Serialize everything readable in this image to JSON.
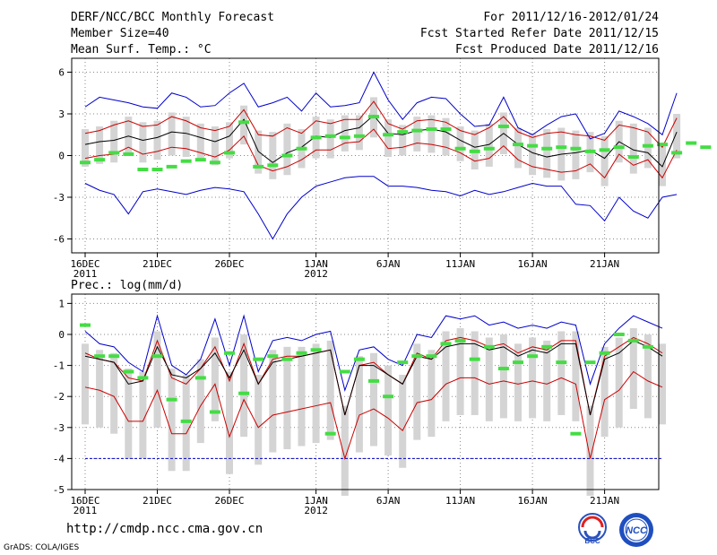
{
  "header": {
    "title": "DERF/NCC/BCC Monthly Forecast",
    "member_size": "Member Size=40",
    "variable": "Mean Surf. Temp.: °C",
    "period": "For 2011/12/16-2012/01/24",
    "started": "Fcst Started Refer Date 2011/12/15",
    "produced": "Fcst Produced Date 2011/12/16"
  },
  "footer": {
    "url": "http://cmdp.ncc.cma.gov.cn",
    "credit": "GrADS: COLA/IGES",
    "logo_bcc": "BCC",
    "logo_ncc": "NCC"
  },
  "colors": {
    "envelope": "#0000cc",
    "spread": "#cc0000",
    "mean": "#000000",
    "box": "#d4d4d4",
    "obs": "#44dd44",
    "grid": "#888888"
  },
  "chart_data": [
    {
      "type": "line",
      "title": "Mean Surf. Temp.: °C",
      "ylim": [
        -7,
        7
      ],
      "yticks": [
        6,
        3,
        0,
        -3,
        -6
      ],
      "grid": true,
      "x_tick_labels": [
        "16DEC",
        "21DEC",
        "26DEC",
        "1JAN",
        "6JAN",
        "11JAN",
        "16JAN",
        "21JAN"
      ],
      "x_tick_days": [
        0,
        5,
        10,
        16,
        21,
        26,
        31,
        36
      ],
      "x_year_labels": [
        {
          "day": 0,
          "label": "2011"
        },
        {
          "day": 16,
          "label": "2012"
        }
      ],
      "days": 40,
      "series": [
        {
          "name": "max",
          "color": "#0000cc",
          "values": [
            3.5,
            4.2,
            4,
            3.8,
            3.5,
            3.4,
            4.5,
            4.2,
            3.5,
            3.6,
            4.5,
            5.2,
            3.5,
            3.8,
            4.2,
            3.2,
            4.5,
            3.5,
            3.6,
            3.8,
            6,
            4,
            2.6,
            3.8,
            4.2,
            4.1,
            3,
            2.1,
            2.2,
            4.2,
            2,
            1.5,
            2.2,
            2.8,
            3,
            1.2,
            1.6,
            3.2,
            2.8,
            2.3,
            1.5,
            4.5
          ]
        },
        {
          "name": "upper",
          "color": "#cc0000",
          "values": [
            1.6,
            1.8,
            2.2,
            2.5,
            2.1,
            2.2,
            2.8,
            2.5,
            2,
            1.8,
            2.1,
            3.3,
            1.5,
            1.4,
            2,
            1.6,
            2.5,
            2.3,
            2.6,
            2.6,
            3.9,
            2.3,
            1.9,
            2.5,
            2.6,
            2.4,
            1.8,
            1.5,
            2,
            2.8,
            1.7,
            1.3,
            1.6,
            1.7,
            1.5,
            1.4,
            1.1,
            2.2,
            2,
            1.7,
            0.6,
            2.7
          ]
        },
        {
          "name": "mean",
          "color": "#000000",
          "values": [
            0.8,
            1,
            1.1,
            1.4,
            1.1,
            1.3,
            1.7,
            1.6,
            1.3,
            1,
            1.4,
            2.6,
            0.3,
            -0.5,
            0.2,
            0.6,
            1.4,
            1.3,
            1.8,
            2,
            2.9,
            1.6,
            1.5,
            1.8,
            1.9,
            1.7,
            1.1,
            0.6,
            0.8,
            1.6,
            0.8,
            0.2,
            -0.1,
            0.1,
            0.2,
            0.4,
            -0.2,
            1,
            0.4,
            0.2,
            -0.8,
            1.7
          ]
        },
        {
          "name": "lower",
          "color": "#cc0000",
          "values": [
            -0.2,
            0,
            0.1,
            0.6,
            0.1,
            0.3,
            0.6,
            0.5,
            0.2,
            -0.1,
            0.4,
            1.4,
            -0.7,
            -1.1,
            -0.8,
            -0.3,
            0.4,
            0.4,
            0.9,
            1,
            1.9,
            0.5,
            0.6,
            0.9,
            0.8,
            0.6,
            0.2,
            -0.4,
            -0.2,
            0.7,
            -0.3,
            -0.8,
            -1,
            -1.2,
            -1.1,
            -0.6,
            -1.6,
            0.1,
            -0.7,
            -0.3,
            -1.6,
            0.4
          ]
        },
        {
          "name": "min",
          "color": "#0000cc",
          "values": [
            -2,
            -2.5,
            -2.8,
            -4.2,
            -2.6,
            -2.4,
            -2.6,
            -2.8,
            -2.5,
            -2.3,
            -2.4,
            -2.6,
            -4.2,
            -6,
            -4.2,
            -3,
            -2.2,
            -1.9,
            -1.6,
            -1.5,
            -1.5,
            -2.2,
            -2.2,
            -2.3,
            -2.5,
            -2.6,
            -2.9,
            -2.5,
            -2.8,
            -2.6,
            -2.3,
            -2,
            -2.2,
            -2.2,
            -3.5,
            -3.6,
            -4.7,
            -3,
            -4,
            -4.5,
            -3,
            -2.8
          ]
        },
        {
          "name": "obs",
          "color": "#44dd44",
          "values": [
            -0.5,
            -0.3,
            0.2,
            0.1,
            -1,
            -1,
            -0.8,
            -0.4,
            -0.3,
            -0.5,
            0.2,
            2.4,
            -0.8,
            -0.7,
            0,
            0.5,
            1.3,
            1.4,
            1.3,
            1.4,
            2.8,
            1.5,
            1.7,
            1.8,
            1.9,
            1.9,
            0.5,
            0.3,
            0.5,
            2.1,
            0.8,
            0.7,
            0.5,
            0.6,
            0.5,
            0.3,
            0.4,
            0.6,
            -0.1,
            0.7,
            0.8,
            0.2,
            0.9,
            0.6
          ]
        }
      ]
    },
    {
      "type": "line",
      "title": "Prec.: log(mm/d)",
      "ylim": [
        -5,
        1.3
      ],
      "yticks": [
        1,
        0,
        -1,
        -2,
        -3,
        -4,
        -5
      ],
      "grid": true,
      "x_tick_labels": [
        "16DEC",
        "21DEC",
        "26DEC",
        "1JAN",
        "6JAN",
        "11JAN",
        "16JAN",
        "21JAN"
      ],
      "x_tick_days": [
        0,
        5,
        10,
        16,
        21,
        26,
        31,
        36
      ],
      "x_year_labels": [
        {
          "day": 0,
          "label": "2011"
        },
        {
          "day": 16,
          "label": "2012"
        }
      ],
      "days": 40,
      "reference_line": -4,
      "series": [
        {
          "name": "max",
          "color": "#0000cc",
          "values": [
            0.1,
            -0.3,
            -0.4,
            -0.9,
            -1.2,
            0.6,
            -1,
            -1.3,
            -0.8,
            0.5,
            -1,
            0.6,
            -1.2,
            -0.2,
            -0.1,
            -0.2,
            0,
            0.1,
            -1.8,
            -0.5,
            -0.4,
            -0.8,
            -1,
            0,
            -0.1,
            0.6,
            0.5,
            0.6,
            0.3,
            0.4,
            0.2,
            0.3,
            0.2,
            0.4,
            0.3,
            -1.6,
            -0.3,
            0.2,
            0.6,
            0.4,
            0.2
          ]
        },
        {
          "name": "upper",
          "color": "#cc0000",
          "values": [
            -0.6,
            -0.8,
            -0.9,
            -1.4,
            -1.5,
            -0.2,
            -1.4,
            -1.6,
            -1.1,
            -0.4,
            -1.5,
            -0.3,
            -1.6,
            -0.8,
            -0.7,
            -0.7,
            -0.6,
            -0.5,
            -2.6,
            -1,
            -0.9,
            -1.3,
            -1.6,
            -0.6,
            -0.8,
            -0.2,
            -0.1,
            -0.2,
            -0.4,
            -0.3,
            -0.6,
            -0.4,
            -0.5,
            -0.2,
            -0.2,
            -2.6,
            -0.7,
            -0.4,
            -0.1,
            -0.3,
            -0.6
          ]
        },
        {
          "name": "mean",
          "color": "#000000",
          "values": [
            -0.7,
            -0.8,
            -0.9,
            -1.6,
            -1.5,
            -0.4,
            -1.3,
            -1.4,
            -1.1,
            -0.6,
            -1.4,
            -0.5,
            -1.6,
            -0.9,
            -0.8,
            -0.7,
            -0.6,
            -0.5,
            -2.6,
            -1,
            -1,
            -1.3,
            -1.6,
            -0.7,
            -0.8,
            -0.4,
            -0.3,
            -0.3,
            -0.5,
            -0.4,
            -0.7,
            -0.5,
            -0.6,
            -0.3,
            -0.3,
            -2.6,
            -0.8,
            -0.6,
            -0.2,
            -0.4,
            -0.7
          ]
        },
        {
          "name": "lower",
          "color": "#cc0000",
          "values": [
            -1.7,
            -1.8,
            -2,
            -2.8,
            -2.8,
            -1.8,
            -3.2,
            -3.2,
            -2.3,
            -1.6,
            -3.3,
            -2.1,
            -3,
            -2.6,
            -2.5,
            -2.4,
            -2.3,
            -2.2,
            -4,
            -2.6,
            -2.4,
            -2.7,
            -3.1,
            -2.2,
            -2.1,
            -1.6,
            -1.4,
            -1.4,
            -1.6,
            -1.5,
            -1.6,
            -1.5,
            -1.6,
            -1.4,
            -1.6,
            -4,
            -2.1,
            -1.8,
            -1.2,
            -1.5,
            -1.7
          ]
        },
        {
          "name": "min",
          "color": "#0000cc",
          "values": [
            -4,
            -4,
            -4,
            -4,
            -4,
            -4,
            -4,
            -4,
            -4,
            -4,
            -4,
            -4,
            -4,
            -4,
            -4,
            -4,
            -4,
            -4,
            -4,
            -4,
            -4,
            -4,
            -4,
            -4,
            -4,
            -4,
            -4,
            -4,
            -4,
            -4,
            -4,
            -4,
            -4,
            -4,
            -4,
            -4,
            -4,
            -4,
            -4,
            -4,
            -4
          ]
        },
        {
          "name": "obs",
          "color": "#44dd44",
          "values": [
            0.3,
            -0.7,
            -0.7,
            -1.2,
            -1.4,
            -0.7,
            -2.1,
            -2.8,
            -1.4,
            -2.5,
            -0.6,
            -1.9,
            -0.8,
            -0.7,
            -0.8,
            -0.6,
            -0.5,
            -3.2,
            -1.2,
            -0.8,
            -1.5,
            -2,
            -0.9,
            -0.7,
            -0.7,
            -0.3,
            -0.2,
            -0.8,
            -0.4,
            -1.1,
            -0.9,
            -0.7,
            -0.4,
            -0.9,
            -3.2,
            -0.9,
            -0.6,
            0,
            -0.2,
            -0.4
          ]
        }
      ]
    }
  ]
}
